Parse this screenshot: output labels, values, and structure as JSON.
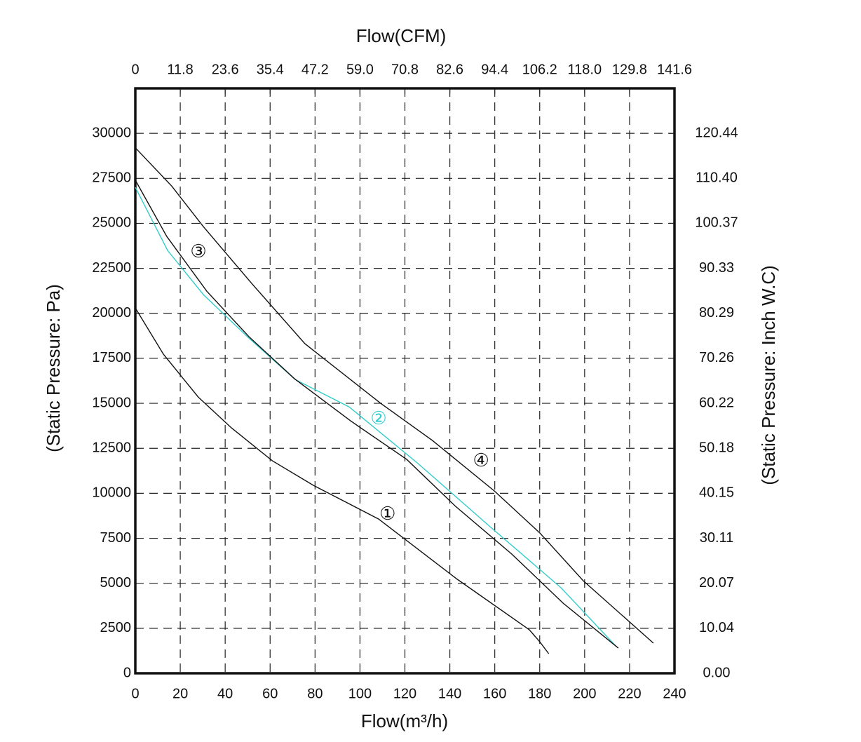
{
  "chart_data": {
    "type": "line",
    "x_title": "Flow(m³/h)",
    "x2_title": "Flow(CFM)",
    "y_title": "(Static Pressure: Pa)",
    "y2_title": "(Static Pressure: Inch W.C)",
    "xlim": [
      0,
      240
    ],
    "xticks": [
      0,
      20,
      40,
      60,
      80,
      100,
      120,
      140,
      160,
      180,
      200,
      220,
      240
    ],
    "x2lim": [
      0,
      141.6
    ],
    "x2ticks": [
      0,
      11.8,
      23.6,
      35.4,
      47.2,
      {
        "value": 59,
        "label": "59.0"
      },
      70.8,
      82.6,
      94.4,
      106.2,
      {
        "value": 118,
        "label": "118.0"
      },
      129.8,
      141.6
    ],
    "ylim": [
      0,
      32500
    ],
    "yticks": [
      0,
      2500,
      5000,
      7500,
      10000,
      12500,
      15000,
      17500,
      20000,
      22500,
      25000,
      27500,
      30000
    ],
    "y2lim": [
      0,
      130.48
    ],
    "y2ticks": [
      {
        "value": 0,
        "label": "0.00"
      },
      10.04,
      20.07,
      30.11,
      40.15,
      50.18,
      60.22,
      70.26,
      80.29,
      90.33,
      100.37,
      {
        "value": 110.4,
        "label": "110.40"
      },
      120.44
    ],
    "grid": true,
    "series": [
      {
        "name": "①",
        "color": "#111111",
        "label_at": [
          112.3,
          8800
        ],
        "x": [
          0,
          12.5,
          28,
          42.8,
          61,
          79.3,
          108.3,
          143.3,
          175.4,
          180,
          184
        ],
        "values": [
          20300,
          17725,
          15350,
          13635,
          11805,
          10440,
          8570,
          5220,
          2415,
          1750,
          1090
        ]
      },
      {
        "name": "②",
        "color": "#33cccc",
        "label_at": [
          108.3,
          14100
        ],
        "x": [
          0,
          14.4,
          30.3,
          50.6,
          71.2,
          95.2,
          125.5,
          158.3,
          189.5,
          213.8
        ],
        "values": [
          27000,
          23490,
          21040,
          18620,
          16320,
          14800,
          11690,
          8100,
          4750,
          1520
        ]
      },
      {
        "name": "③",
        "color": "#111111",
        "label_at": [
          28.1,
          23370
        ],
        "x": [
          0,
          14,
          31.8,
          50.6,
          70.9,
          95.8,
          120.8,
          142.6,
          167.6,
          190.4,
          215
        ],
        "values": [
          27400,
          24270,
          21230,
          18700,
          16360,
          14025,
          11880,
          9270,
          6620,
          3895,
          1400
        ]
      },
      {
        "name": "④",
        "color": "#111111",
        "label_at": [
          153.9,
          11760
        ],
        "x": [
          0,
          16.2,
          30.3,
          52.1,
          75.5,
          109.2,
          132.3,
          159.8,
          180.1,
          199.4,
          230.6
        ],
        "values": [
          29200,
          27070,
          24815,
          21620,
          18310,
          15000,
          12930,
          10130,
          7790,
          5140,
          1675
        ]
      }
    ]
  }
}
